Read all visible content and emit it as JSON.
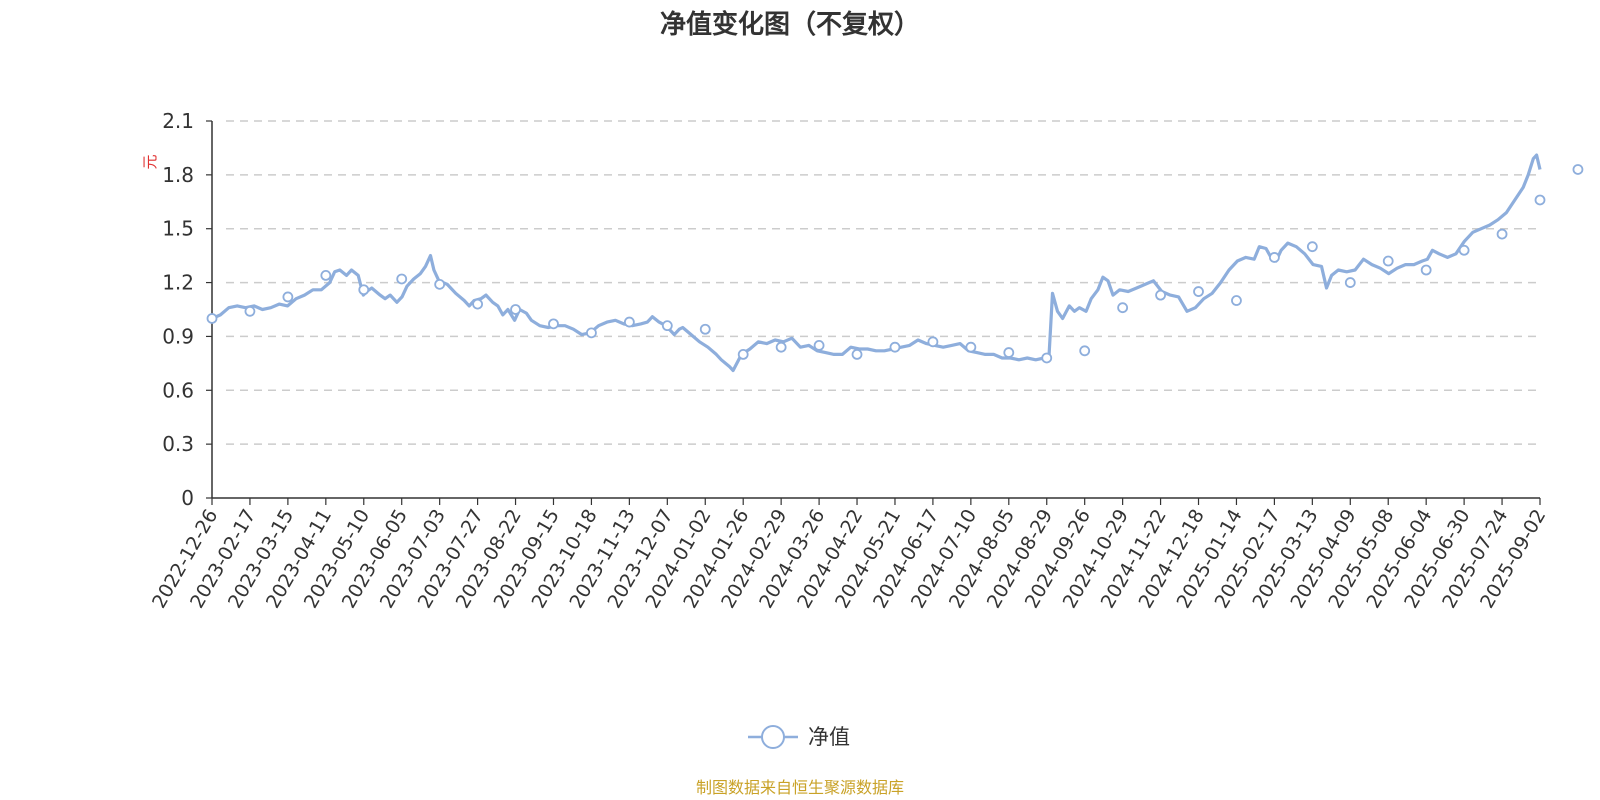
{
  "chart_data": {
    "type": "line",
    "title": "净值变化图（不复权）",
    "ylabel": "元",
    "ylim": [
      0,
      2.1
    ],
    "yticks": [
      "0",
      "0.3",
      "0.6",
      "0.9",
      "1.2",
      "1.5",
      "1.8",
      "2.1"
    ],
    "grid": true,
    "legend_position": "bottom-center",
    "source_note": "制图数据来自恒生聚源数据库",
    "colors": {
      "line": "#8eaedc",
      "marker_fill": "#ffffff",
      "grid": "#cccccc",
      "axis": "#333333"
    },
    "x_ticks": [
      "2022-12-26",
      "2023-02-17",
      "2023-03-15",
      "2023-04-11",
      "2023-05-10",
      "2023-06-05",
      "2023-07-03",
      "2023-07-27",
      "2023-08-22",
      "2023-09-15",
      "2023-10-18",
      "2023-11-13",
      "2023-12-07",
      "2024-01-02",
      "2024-01-26",
      "2024-02-29",
      "2024-03-26",
      "2024-04-22",
      "2024-05-21",
      "2024-06-17",
      "2024-07-10",
      "2024-08-05",
      "2024-08-29",
      "2024-09-26",
      "2024-10-29",
      "2024-11-22",
      "2024-12-18",
      "2025-01-14",
      "2025-02-17",
      "2025-03-13",
      "2025-04-09",
      "2025-05-08",
      "2025-06-04",
      "2025-06-30",
      "2025-07-24",
      "2025-09-02"
    ],
    "series": [
      {
        "name": "净值",
        "values": [
          [
            0,
            1.0
          ],
          [
            0.5,
            1.02
          ],
          [
            1,
            1.06
          ],
          [
            1.5,
            1.07
          ],
          [
            2,
            1.06
          ],
          [
            2.5,
            1.07
          ],
          [
            3,
            1.05
          ],
          [
            3.5,
            1.06
          ],
          [
            4,
            1.08
          ],
          [
            4.5,
            1.07
          ],
          [
            5,
            1.11
          ],
          [
            5.5,
            1.13
          ],
          [
            6,
            1.16
          ],
          [
            6.5,
            1.16
          ],
          [
            7,
            1.2
          ],
          [
            7.3,
            1.26
          ],
          [
            7.6,
            1.27
          ],
          [
            8,
            1.24
          ],
          [
            8.3,
            1.27
          ],
          [
            8.7,
            1.24
          ],
          [
            9,
            1.13
          ],
          [
            9.2,
            1.15
          ],
          [
            9.5,
            1.17
          ],
          [
            10,
            1.13
          ],
          [
            10.3,
            1.11
          ],
          [
            10.6,
            1.13
          ],
          [
            11,
            1.09
          ],
          [
            11.3,
            1.12
          ],
          [
            11.6,
            1.18
          ],
          [
            12,
            1.22
          ],
          [
            12.4,
            1.25
          ],
          [
            12.7,
            1.29
          ],
          [
            13,
            1.35
          ],
          [
            13.2,
            1.27
          ],
          [
            13.5,
            1.21
          ],
          [
            14,
            1.19
          ],
          [
            14.5,
            1.14
          ],
          [
            15,
            1.1
          ],
          [
            15.3,
            1.07
          ],
          [
            15.6,
            1.1
          ],
          [
            16,
            1.11
          ],
          [
            16.3,
            1.13
          ],
          [
            16.7,
            1.09
          ],
          [
            17,
            1.07
          ],
          [
            17.3,
            1.02
          ],
          [
            17.6,
            1.05
          ],
          [
            18,
            0.99
          ],
          [
            18.3,
            1.05
          ],
          [
            18.7,
            1.03
          ],
          [
            19,
            0.99
          ],
          [
            19.5,
            0.96
          ],
          [
            20,
            0.95
          ],
          [
            20.5,
            0.96
          ],
          [
            21,
            0.96
          ],
          [
            21.5,
            0.94
          ],
          [
            22,
            0.91
          ],
          [
            22.5,
            0.92
          ],
          [
            23,
            0.96
          ],
          [
            23.5,
            0.98
          ],
          [
            24,
            0.99
          ],
          [
            24.5,
            0.97
          ],
          [
            25,
            0.96
          ],
          [
            25.5,
            0.97
          ],
          [
            25.9,
            0.98
          ],
          [
            26.2,
            1.01
          ],
          [
            26.6,
            0.98
          ],
          [
            27,
            0.96
          ],
          [
            27.5,
            0.91
          ],
          [
            27.8,
            0.94
          ],
          [
            28,
            0.95
          ],
          [
            28.5,
            0.91
          ],
          [
            29,
            0.87
          ],
          [
            29.5,
            0.84
          ],
          [
            30,
            0.8
          ],
          [
            30.3,
            0.77
          ],
          [
            30.8,
            0.73
          ],
          [
            31,
            0.71
          ],
          [
            31.5,
            0.8
          ],
          [
            32,
            0.83
          ],
          [
            32.5,
            0.87
          ],
          [
            33,
            0.86
          ],
          [
            33.5,
            0.88
          ],
          [
            34,
            0.87
          ],
          [
            34.5,
            0.89
          ],
          [
            35,
            0.84
          ],
          [
            35.5,
            0.85
          ],
          [
            36,
            0.82
          ],
          [
            36.5,
            0.81
          ],
          [
            37,
            0.8
          ],
          [
            37.5,
            0.8
          ],
          [
            38,
            0.84
          ],
          [
            38.5,
            0.83
          ],
          [
            39,
            0.83
          ],
          [
            39.5,
            0.82
          ],
          [
            40,
            0.82
          ],
          [
            40.5,
            0.83
          ],
          [
            41,
            0.84
          ],
          [
            41.5,
            0.85
          ],
          [
            42,
            0.88
          ],
          [
            42.5,
            0.86
          ],
          [
            43,
            0.85
          ],
          [
            43.5,
            0.84
          ],
          [
            44,
            0.85
          ],
          [
            44.5,
            0.86
          ],
          [
            45,
            0.82
          ],
          [
            45.5,
            0.81
          ],
          [
            46,
            0.8
          ],
          [
            46.5,
            0.8
          ],
          [
            47,
            0.78
          ],
          [
            47.5,
            0.78
          ],
          [
            48,
            0.77
          ],
          [
            48.5,
            0.78
          ],
          [
            49,
            0.77
          ],
          [
            49.5,
            0.78
          ],
          [
            49.8,
            0.8
          ],
          [
            50,
            1.14
          ],
          [
            50.3,
            1.04
          ],
          [
            50.6,
            1.0
          ],
          [
            51,
            1.07
          ],
          [
            51.3,
            1.04
          ],
          [
            51.6,
            1.06
          ],
          [
            52,
            1.04
          ],
          [
            52.3,
            1.11
          ],
          [
            52.7,
            1.16
          ],
          [
            53,
            1.23
          ],
          [
            53.3,
            1.21
          ],
          [
            53.6,
            1.13
          ],
          [
            54,
            1.16
          ],
          [
            54.5,
            1.15
          ],
          [
            55,
            1.17
          ],
          [
            55.5,
            1.19
          ],
          [
            56,
            1.21
          ],
          [
            56.5,
            1.15
          ],
          [
            57,
            1.13
          ],
          [
            57.5,
            1.12
          ],
          [
            58,
            1.04
          ],
          [
            58.5,
            1.06
          ],
          [
            59,
            1.11
          ],
          [
            59.5,
            1.14
          ],
          [
            60,
            1.2
          ],
          [
            60.5,
            1.27
          ],
          [
            61,
            1.32
          ],
          [
            61.5,
            1.34
          ],
          [
            62,
            1.33
          ],
          [
            62.3,
            1.4
          ],
          [
            62.7,
            1.39
          ],
          [
            63,
            1.34
          ],
          [
            63.3,
            1.32
          ],
          [
            63.6,
            1.38
          ],
          [
            64,
            1.42
          ],
          [
            64.5,
            1.4
          ],
          [
            65,
            1.36
          ],
          [
            65.5,
            1.3
          ],
          [
            66,
            1.29
          ],
          [
            66.3,
            1.17
          ],
          [
            66.6,
            1.24
          ],
          [
            67,
            1.27
          ],
          [
            67.5,
            1.26
          ],
          [
            68,
            1.27
          ],
          [
            68.5,
            1.33
          ],
          [
            69,
            1.3
          ],
          [
            69.5,
            1.28
          ],
          [
            70,
            1.25
          ],
          [
            70.5,
            1.28
          ],
          [
            71,
            1.3
          ],
          [
            71.5,
            1.3
          ],
          [
            72,
            1.32
          ],
          [
            72.3,
            1.33
          ],
          [
            72.6,
            1.38
          ],
          [
            73,
            1.36
          ],
          [
            73.5,
            1.34
          ],
          [
            74,
            1.36
          ],
          [
            74.5,
            1.43
          ],
          [
            75,
            1.48
          ],
          [
            75.5,
            1.5
          ],
          [
            76,
            1.52
          ],
          [
            76.5,
            1.55
          ],
          [
            77,
            1.59
          ],
          [
            77.5,
            1.66
          ],
          [
            78,
            1.73
          ],
          [
            78.3,
            1.8
          ],
          [
            78.6,
            1.89
          ],
          [
            78.8,
            1.91
          ],
          [
            79,
            1.83
          ]
        ],
        "markers": [
          [
            0,
            1.0
          ],
          [
            1,
            1.04
          ],
          [
            2,
            1.12
          ],
          [
            3,
            1.24
          ],
          [
            4,
            1.16
          ],
          [
            5,
            1.22
          ],
          [
            6,
            1.19
          ],
          [
            7,
            1.08
          ],
          [
            8,
            1.05
          ],
          [
            9,
            0.97
          ],
          [
            10,
            0.92
          ],
          [
            11,
            0.98
          ],
          [
            12,
            0.96
          ],
          [
            13,
            0.94
          ],
          [
            14,
            0.8
          ],
          [
            15,
            0.84
          ],
          [
            16,
            0.85
          ],
          [
            17,
            0.8
          ],
          [
            18,
            0.84
          ],
          [
            19,
            0.87
          ],
          [
            20,
            0.84
          ],
          [
            21,
            0.81
          ],
          [
            22,
            0.78
          ],
          [
            23,
            0.82
          ],
          [
            24,
            1.06
          ],
          [
            25,
            1.13
          ],
          [
            26,
            1.15
          ],
          [
            27,
            1.1
          ],
          [
            28,
            1.34
          ],
          [
            29,
            1.4
          ],
          [
            30,
            1.2
          ],
          [
            31,
            1.32
          ],
          [
            32,
            1.27
          ],
          [
            33,
            1.38
          ],
          [
            34,
            1.47
          ],
          [
            35,
            1.66
          ],
          [
            36,
            1.83
          ]
        ]
      }
    ]
  }
}
